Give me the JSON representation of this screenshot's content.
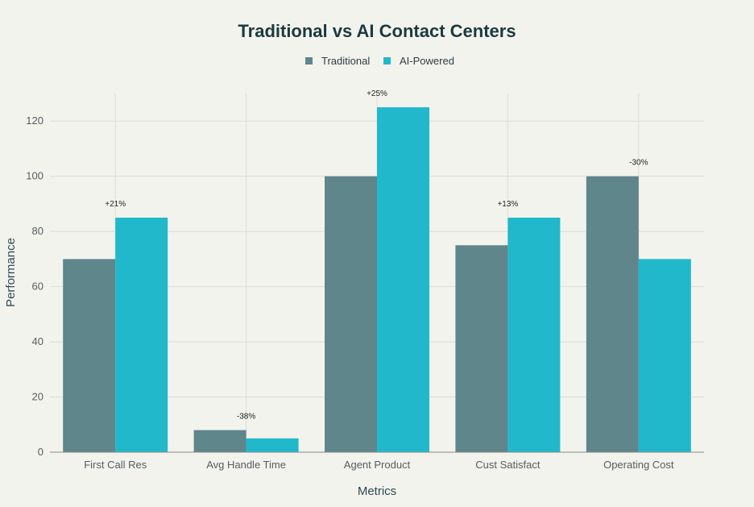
{
  "chart_data": {
    "type": "bar",
    "title": "Traditional vs AI Contact Centers",
    "xlabel": "Metrics",
    "ylabel": "Performance",
    "ylim": [
      0,
      130
    ],
    "yticks": [
      0,
      20,
      40,
      60,
      80,
      100,
      120
    ],
    "grid": true,
    "legend_position": "top-center",
    "categories": [
      "First Call Res",
      "Avg Handle Time",
      "Agent Product",
      "Cust Satisfact",
      "Operating Cost"
    ],
    "series": [
      {
        "name": "Traditional",
        "color": "#5e868b",
        "values": [
          70,
          8,
          100,
          75,
          100
        ]
      },
      {
        "name": "AI-Powered",
        "color": "#21b8cc",
        "values": [
          85,
          5,
          125,
          85,
          70
        ]
      }
    ],
    "annotations": [
      "+21%",
      "-38%",
      "+25%",
      "+13%",
      "-30%"
    ]
  }
}
